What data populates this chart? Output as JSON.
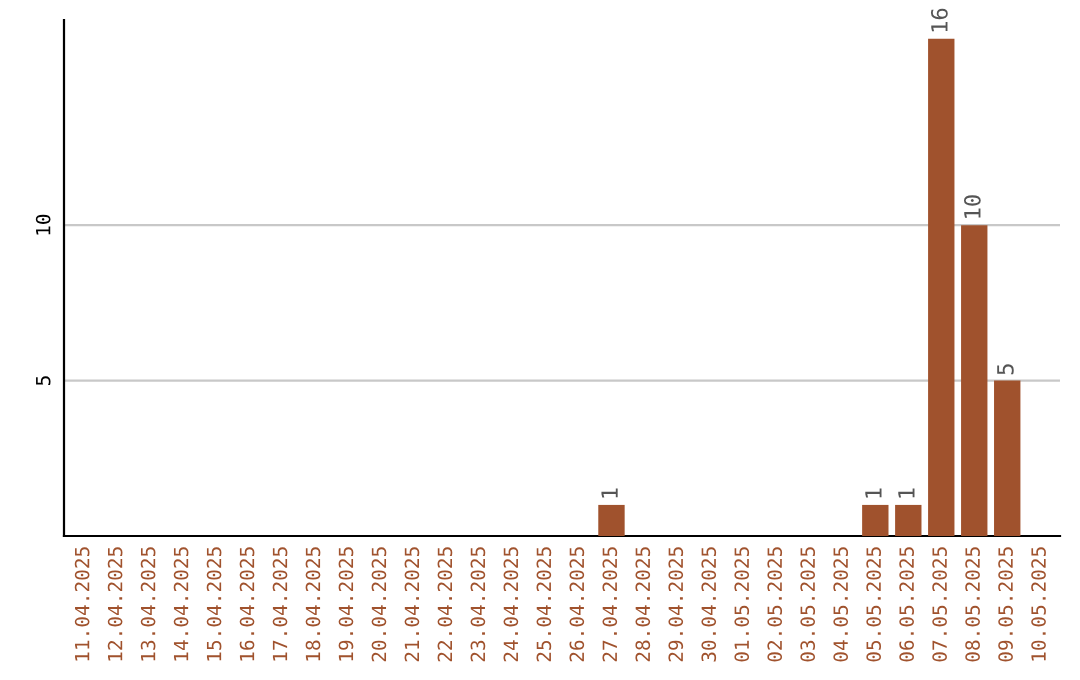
{
  "chart_data": {
    "type": "bar",
    "categories": [
      "11.04.2025",
      "12.04.2025",
      "13.04.2025",
      "14.04.2025",
      "15.04.2025",
      "16.04.2025",
      "17.04.2025",
      "18.04.2025",
      "19.04.2025",
      "20.04.2025",
      "21.04.2025",
      "22.04.2025",
      "23.04.2025",
      "24.04.2025",
      "25.04.2025",
      "26.04.2025",
      "27.04.2025",
      "28.04.2025",
      "29.04.2025",
      "30.04.2025",
      "01.05.2025",
      "02.05.2025",
      "03.05.2025",
      "04.05.2025",
      "05.05.2025",
      "06.05.2025",
      "07.05.2025",
      "08.05.2025",
      "09.05.2025",
      "10.05.2025"
    ],
    "values": [
      0,
      0,
      0,
      0,
      0,
      0,
      0,
      0,
      0,
      0,
      0,
      0,
      0,
      0,
      0,
      0,
      1,
      0,
      0,
      0,
      0,
      0,
      0,
      0,
      1,
      1,
      16,
      10,
      5,
      0
    ],
    "value_labels": [
      null,
      null,
      null,
      null,
      null,
      null,
      null,
      null,
      null,
      null,
      null,
      null,
      null,
      null,
      null,
      null,
      "1",
      null,
      null,
      null,
      null,
      null,
      null,
      null,
      "1",
      "1",
      "16",
      "10",
      "5",
      null
    ],
    "color": "#a0522d",
    "ylim": [
      0,
      16.6
    ],
    "yticks": [
      5,
      10
    ],
    "grid": "y"
  }
}
